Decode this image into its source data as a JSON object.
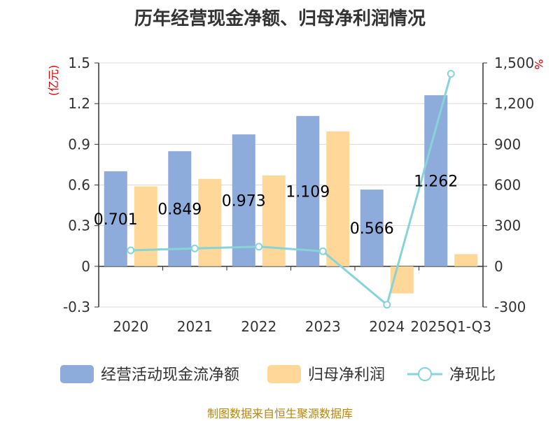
{
  "chart_data": {
    "type": "bar",
    "title": "历年经营现金净额、归母净利润情况",
    "categories": [
      "2020",
      "2021",
      "2022",
      "2023",
      "2024",
      "2025Q1-Q3"
    ],
    "series": [
      {
        "name": "经营活动现金流净额",
        "axis": "left",
        "type": "bar",
        "color": "#8eacdb",
        "values": [
          0.701,
          0.849,
          0.973,
          1.109,
          0.566,
          1.262
        ],
        "labels": [
          "0.701",
          "0.849",
          "0.973",
          "1.109",
          "0.566",
          "1.262"
        ]
      },
      {
        "name": "归母净利润",
        "axis": "left",
        "type": "bar",
        "color": "#ffd899",
        "values": [
          0.59,
          0.645,
          0.67,
          0.995,
          -0.2,
          0.09
        ]
      },
      {
        "name": "净现比",
        "axis": "right",
        "type": "line",
        "color": "#86d3d8",
        "values": [
          118,
          132,
          145,
          111,
          -283,
          1420
        ]
      }
    ],
    "left_axis": {
      "unit": "(亿元)",
      "min": -0.3,
      "max": 1.5,
      "ticks": [
        -0.3,
        0,
        0.3,
        0.6,
        0.9,
        1.2,
        1.5
      ],
      "tick_labels": [
        "-0.3",
        "0",
        "0.3",
        "0.6",
        "0.9",
        "1.2",
        "1.5"
      ]
    },
    "right_axis": {
      "unit": "%",
      "min": -300,
      "max": 1500,
      "ticks": [
        -300,
        0,
        300,
        600,
        900,
        1200,
        1500
      ],
      "tick_labels": [
        "-300",
        "0",
        "300",
        "600",
        "900",
        "1,200",
        "1,500"
      ]
    },
    "legend_position": "bottom",
    "source": "制图数据来自恒生聚源数据库"
  }
}
